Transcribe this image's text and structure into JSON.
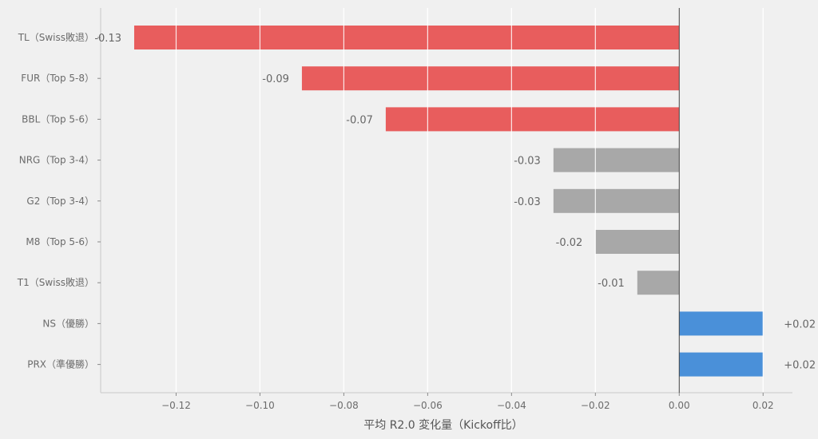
{
  "chart_data": {
    "type": "bar",
    "orientation": "horizontal",
    "categories": [
      "TL（Swiss敗退）",
      "FUR（Top 5-8）",
      "BBL（Top 5-6）",
      "NRG（Top 3-4）",
      "G2（Top 3-4）",
      "M8（Top 5-6）",
      "T1（Swiss敗退）",
      "NS（優勝）",
      "PRX（準優勝）"
    ],
    "values": [
      -0.13,
      -0.09,
      -0.07,
      -0.03,
      -0.03,
      -0.02,
      -0.01,
      0.02,
      0.02
    ],
    "value_labels": [
      "-0.13",
      "-0.09",
      "-0.07",
      "-0.03",
      "-0.03",
      "-0.02",
      "-0.01",
      "+0.02",
      "+0.02"
    ],
    "xlabel": "平均 R2.0 変化量（Kickoff比）",
    "ylabel": "",
    "xlim": [
      -0.138,
      0.027
    ],
    "xticks": [
      -0.12,
      -0.1,
      -0.08,
      -0.06,
      -0.04,
      -0.02,
      0.0,
      0.02
    ],
    "xtick_labels": [
      "−0.12",
      "−0.10",
      "−0.08",
      "−0.06",
      "−0.04",
      "−0.02",
      "0.00",
      "0.02"
    ],
    "grid": "vertical",
    "colors": {
      "strong_negative": "#e85d5d",
      "mild_negative": "#a8a8a8",
      "positive": "#4a90d9",
      "background": "#f0f0f0",
      "gridline": "#ffffff",
      "zero_line": "#444444",
      "axis": "#c8c8c8"
    },
    "bar_colors": [
      "strong_negative",
      "strong_negative",
      "strong_negative",
      "mild_negative",
      "mild_negative",
      "mild_negative",
      "mild_negative",
      "positive",
      "positive"
    ]
  }
}
